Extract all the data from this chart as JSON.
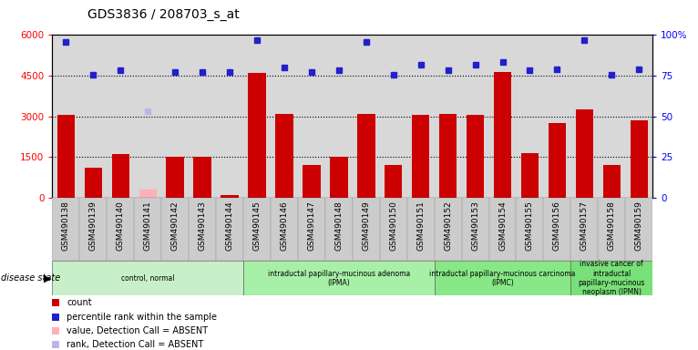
{
  "title": "GDS3836 / 208703_s_at",
  "samples": [
    "GSM490138",
    "GSM490139",
    "GSM490140",
    "GSM490141",
    "GSM490142",
    "GSM490143",
    "GSM490144",
    "GSM490145",
    "GSM490146",
    "GSM490147",
    "GSM490148",
    "GSM490149",
    "GSM490150",
    "GSM490151",
    "GSM490152",
    "GSM490153",
    "GSM490154",
    "GSM490155",
    "GSM490156",
    "GSM490157",
    "GSM490158",
    "GSM490159"
  ],
  "counts": [
    3050,
    1100,
    1600,
    null,
    1500,
    1510,
    100,
    4600,
    3100,
    1200,
    1520,
    3090,
    1200,
    3050,
    3100,
    3060,
    4650,
    1650,
    2750,
    3250,
    1200,
    2850
  ],
  "absent_counts": [
    null,
    null,
    null,
    300,
    null,
    null,
    null,
    null,
    null,
    null,
    null,
    null,
    null,
    null,
    null,
    null,
    null,
    null,
    null,
    null,
    null,
    null
  ],
  "percentile_rank": [
    5750,
    4550,
    4700,
    null,
    4650,
    4650,
    4650,
    5800,
    4800,
    4650,
    4700,
    5750,
    4550,
    4900,
    4700,
    4900,
    5000,
    4700,
    4750,
    5800,
    4550,
    4750
  ],
  "absent_rank": [
    null,
    null,
    null,
    3200,
    null,
    null,
    null,
    null,
    null,
    null,
    null,
    null,
    null,
    null,
    null,
    null,
    null,
    null,
    null,
    null,
    null,
    null
  ],
  "groups": [
    {
      "label": "control, normal",
      "start": 0,
      "end": 6,
      "color": "#c8f0c8"
    },
    {
      "label": "intraductal papillary-mucinous adenoma\n(IPMA)",
      "start": 7,
      "end": 13,
      "color": "#a8f0a8"
    },
    {
      "label": "intraductal papillary-mucinous carcinoma\n(IPMC)",
      "start": 14,
      "end": 18,
      "color": "#88e888"
    },
    {
      "label": "invasive cancer of\nintraductal\npapillary-mucinous\nneoplasm (IPMN)",
      "start": 19,
      "end": 21,
      "color": "#78e078"
    }
  ],
  "ylim_left": [
    0,
    6000
  ],
  "ylim_right": [
    0,
    100
  ],
  "yticks_left": [
    0,
    1500,
    3000,
    4500,
    6000
  ],
  "yticks_right": [
    0,
    25,
    50,
    75,
    100
  ],
  "bar_color": "#cc0000",
  "absent_bar_color": "#ffb0b8",
  "dot_color": "#2020cc",
  "absent_dot_color": "#b8b8e8",
  "plot_bg_color": "#d8d8d8",
  "xtick_bg_color": "#c8c8c8",
  "legend_items": [
    {
      "label": "count",
      "color": "#cc0000"
    },
    {
      "label": "percentile rank within the sample",
      "color": "#2020cc"
    },
    {
      "label": "value, Detection Call = ABSENT",
      "color": "#ffb0b8"
    },
    {
      "label": "rank, Detection Call = ABSENT",
      "color": "#b8b8e8"
    }
  ]
}
